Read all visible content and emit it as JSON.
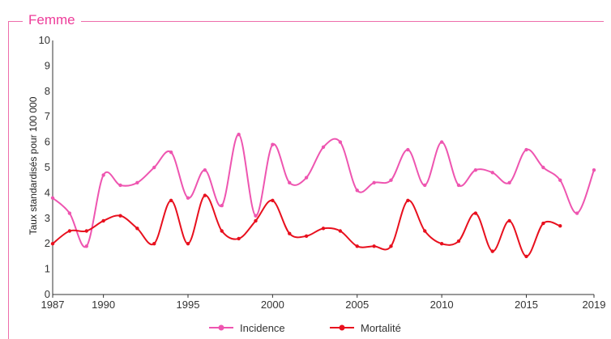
{
  "section_title": "Femme",
  "colors": {
    "frame": "#ee6dab",
    "title": "#ee3d9a",
    "incidence": "#ee55b0",
    "mortalite": "#e8101e",
    "axis": "#333333"
  },
  "chart_data": {
    "type": "line",
    "title": "Femme",
    "ylabel": "Taux standardisés pour 100 000",
    "xlabel": "",
    "xlim": [
      1987,
      2019
    ],
    "ylim": [
      0,
      10
    ],
    "xticks": [
      "1987",
      "1990",
      "1995",
      "2000",
      "2005",
      "2010",
      "2015",
      "2019"
    ],
    "yticks": [
      "0",
      "1",
      "2",
      "3",
      "4",
      "5",
      "6",
      "7",
      "8",
      "9",
      "10"
    ],
    "grid": false,
    "legend_position": "bottom",
    "series": [
      {
        "name": "Incidence",
        "color": "#ee55b0",
        "x": [
          1987,
          1988,
          1989,
          1990,
          1991,
          1992,
          1993,
          1994,
          1995,
          1996,
          1997,
          1998,
          1999,
          2000,
          2001,
          2002,
          2003,
          2004,
          2005,
          2006,
          2007,
          2008,
          2009,
          2010,
          2011,
          2012,
          2013,
          2014,
          2015,
          2016,
          2017,
          2018,
          2019
        ],
        "y": [
          3.8,
          3.2,
          1.9,
          4.7,
          4.3,
          4.4,
          5.0,
          5.6,
          3.8,
          4.9,
          3.5,
          6.3,
          3.1,
          5.9,
          4.4,
          4.6,
          5.8,
          6.0,
          4.1,
          4.4,
          4.5,
          5.7,
          4.3,
          6.0,
          4.3,
          4.9,
          4.8,
          4.4,
          5.7,
          5.0,
          4.5,
          3.2,
          4.9
        ]
      },
      {
        "name": "Mortalité",
        "color": "#e8101e",
        "x": [
          1987,
          1988,
          1989,
          1990,
          1991,
          1992,
          1993,
          1994,
          1995,
          1996,
          1997,
          1998,
          1999,
          2000,
          2001,
          2002,
          2003,
          2004,
          2005,
          2006,
          2007,
          2008,
          2009,
          2010,
          2011,
          2012,
          2013,
          2014,
          2015,
          2016,
          2017
        ],
        "y": [
          2.0,
          2.5,
          2.5,
          2.9,
          3.1,
          2.6,
          2.0,
          3.7,
          2.0,
          3.9,
          2.5,
          2.2,
          2.9,
          3.7,
          2.4,
          2.3,
          2.6,
          2.5,
          1.9,
          1.9,
          1.9,
          3.7,
          2.5,
          2.0,
          2.1,
          3.2,
          1.7,
          2.9,
          1.5,
          2.8,
          2.7
        ]
      }
    ]
  }
}
